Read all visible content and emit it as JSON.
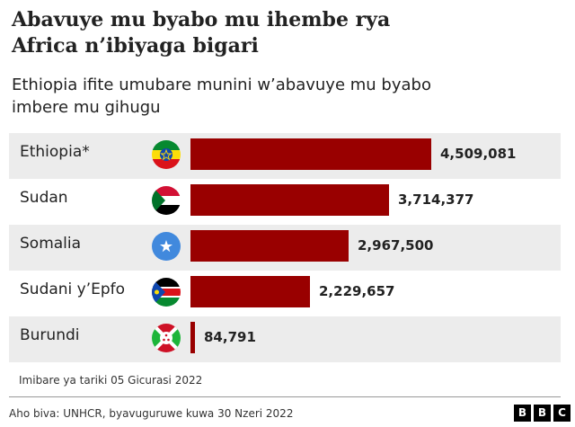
{
  "header": {
    "title_line1": "Abavuye mu byabo mu ihembe rya",
    "title_line2": "Africa n’ibiyaga bigari",
    "subtitle_line1": "Ethiopia ifite umubare munini w’abavuye mu byabo",
    "subtitle_line2": "imbere mu gihugu"
  },
  "chart_data": {
    "type": "bar",
    "orientation": "horizontal",
    "title": "Abavuye mu byabo mu ihembe rya Africa n’ibiyaga bigari",
    "subtitle": "Ethiopia ifite umubare munini w’abavuye mu byabo imbere mu gihugu",
    "categories": [
      "Ethiopia*",
      "Sudan",
      "Somalia",
      "Sudani y’Epfo",
      "Burundi"
    ],
    "values": [
      4509081,
      3714377,
      2967500,
      2229657,
      84791
    ],
    "value_labels": [
      "4,509,081",
      "3,714,377",
      "2,967,500",
      "2,229,657",
      "84,791"
    ],
    "flags": [
      "ethiopia-flag-icon",
      "sudan-flag-icon",
      "somalia-flag-icon",
      "south-sudan-flag-icon",
      "burundi-flag-icon"
    ],
    "bar_color": "#990000",
    "xlim": [
      0,
      4509081
    ],
    "grid": false,
    "legend": "none"
  },
  "footer": {
    "note": "Imibare ya tariki 05 Gicurasi 2022",
    "source": "Aho biva: UNHCR, byavuguruwe kuwa 30 Nzeri 2022",
    "logo": [
      "B",
      "B",
      "C"
    ]
  }
}
